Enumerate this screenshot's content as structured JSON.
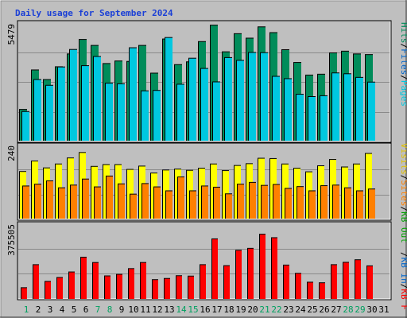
{
  "chart_data": [
    {
      "type": "bar",
      "title": "Daily usage for September 2024",
      "categories": [
        "1",
        "2",
        "3",
        "4",
        "5",
        "6",
        "7",
        "8",
        "9",
        "10",
        "11",
        "12",
        "13",
        "14",
        "15",
        "16",
        "17",
        "18",
        "19",
        "20",
        "21",
        "22",
        "23",
        "24",
        "25",
        "26",
        "27",
        "28",
        "29",
        "30",
        "31"
      ],
      "ymax_label": "5479",
      "ylim": [
        0,
        5479
      ],
      "series": [
        {
          "name": "Pages",
          "color": "#00c8e0",
          "values": [
            1350,
            2850,
            2580,
            3440,
            4260,
            3500,
            3930,
            2680,
            2650,
            4340,
            2320,
            2340,
            4820,
            2630,
            3850,
            3370,
            2740,
            3880,
            3750,
            4120,
            4110,
            3000,
            2890,
            2160,
            2050,
            2090,
            3160,
            3120,
            2950,
            2730,
            0
          ]
        },
        {
          "name": "Files",
          "color": "#00c8e0",
          "values": [
            1350,
            2850,
            2580,
            3440,
            4260,
            3500,
            3930,
            2680,
            2650,
            4340,
            2320,
            2340,
            4820,
            2630,
            3850,
            3370,
            2740,
            3880,
            3750,
            4120,
            4110,
            3000,
            2890,
            2160,
            2050,
            2090,
            3160,
            3120,
            2950,
            2730,
            0
          ]
        },
        {
          "name": "Hits",
          "color": "#008c5a",
          "values": [
            1450,
            3300,
            2850,
            3450,
            4050,
            4730,
            4450,
            3600,
            3720,
            3700,
            4450,
            3150,
            4750,
            3550,
            3680,
            4630,
            5400,
            4150,
            5000,
            4790,
            5320,
            5050,
            4250,
            3650,
            3060,
            3100,
            4100,
            4180,
            4050,
            4020,
            0
          ]
        }
      ]
    },
    {
      "type": "bar",
      "ymax_label": "240",
      "ylim": [
        0,
        240
      ],
      "series": [
        {
          "name": "Visits",
          "color": "#ffff00",
          "values": [
            155,
            190,
            167,
            180,
            200,
            218,
            172,
            178,
            178,
            162,
            173,
            150,
            160,
            163,
            159,
            166,
            180,
            158,
            175,
            181,
            199,
            198,
            180,
            166,
            154,
            174,
            195,
            170,
            180,
            215,
            0
          ]
        },
        {
          "name": "Sites",
          "color": "#ff8000",
          "values": [
            107,
            113,
            124,
            101,
            110,
            130,
            104,
            140,
            114,
            80,
            115,
            104,
            91,
            137,
            91,
            107,
            103,
            81,
            113,
            119,
            109,
            112,
            99,
            105,
            91,
            108,
            110,
            101,
            91,
            97,
            0
          ]
        }
      ]
    },
    {
      "type": "bar",
      "ymax_label": "375505",
      "ylim": [
        0,
        375505
      ],
      "series": [
        {
          "name": "KB F",
          "color": "#ff0000",
          "values": [
            55000,
            172000,
            87000,
            107000,
            135000,
            210000,
            183000,
            115000,
            123000,
            152000,
            183000,
            96000,
            102000,
            116000,
            114000,
            172000,
            303000,
            167000,
            245000,
            255000,
            327000,
            309000,
            170000,
            128000,
            83000,
            80000,
            172000,
            184000,
            197000,
            166000,
            0
          ]
        },
        {
          "name": "KB In",
          "color": "#0000ff",
          "values": []
        },
        {
          "name": "KB Out",
          "color": "#008000",
          "values": []
        }
      ]
    }
  ],
  "legend_right_top": {
    "pages": "Pages",
    "files": "Files",
    "hits": "Hits",
    "sep": "/",
    "pages_color": "#00c8e0",
    "files_color": "#0066cc",
    "hits_color": "#008c5a"
  },
  "legend_right_mid": {
    "visits": "Visits",
    "sites": "Sites",
    "out": "KB Out",
    "sep": "/",
    "visits_color": "#e0c000",
    "sites_color": "#ff8000",
    "out_color": "#00a000"
  },
  "legend_right_bot": {
    "in": "KB In",
    "f": "KB F",
    "sep": "/",
    "in_color": "#0066cc",
    "f_color": "#ff0000"
  },
  "weekend_days": [
    1,
    7,
    8,
    14,
    15,
    21,
    22,
    28,
    29
  ]
}
